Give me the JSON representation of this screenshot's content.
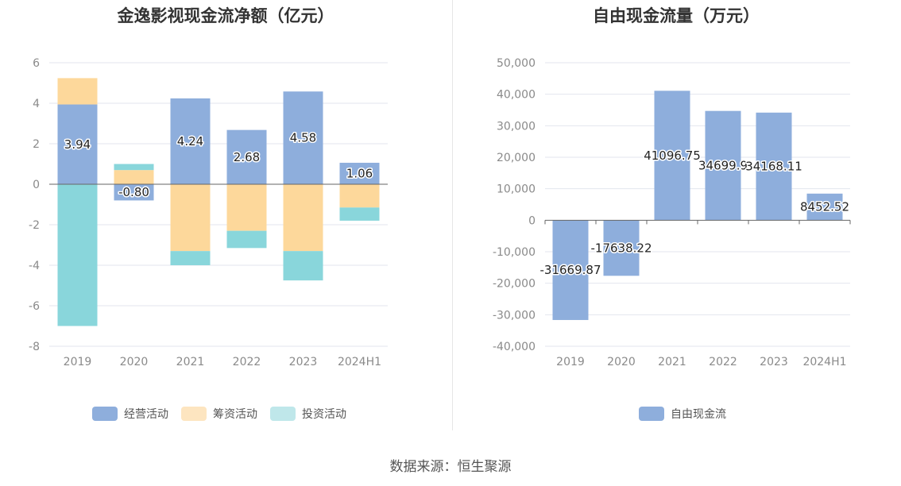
{
  "charts": {
    "left": {
      "title": "金逸影视现金流净额（亿元）",
      "chart_data": {
        "type": "bar",
        "stacked": true,
        "categories": [
          "2019",
          "2020",
          "2021",
          "2022",
          "2023",
          "2024H1"
        ],
        "series": [
          {
            "name": "经营活动",
            "color": "#8eaedc",
            "values": [
              3.94,
              -0.8,
              4.24,
              2.68,
              4.58,
              1.06
            ],
            "labels": [
              "3.94",
              "-0.80",
              "4.24",
              "2.68",
              "4.58",
              "1.06"
            ]
          },
          {
            "name": "筹资活动",
            "color": "#fdd89b",
            "values": [
              1.3,
              0.7,
              -3.3,
              -2.3,
              -3.3,
              -1.15
            ]
          },
          {
            "name": "投资活动",
            "color": "#89d6db",
            "values": [
              -7.0,
              0.3,
              -0.7,
              -0.85,
              -1.45,
              -0.65
            ]
          }
        ],
        "ylim": [
          -8,
          6
        ],
        "yticks": [
          6,
          4,
          2,
          0,
          -2,
          -4,
          -6,
          -8
        ],
        "ytick_labels": [
          "6",
          "4",
          "2",
          "0",
          "-2",
          "-4",
          "-6",
          "-8"
        ],
        "grid": true,
        "legend_position": "bottom",
        "legend_colors": [
          "#8eaedc",
          "#fde5c0",
          "#bfe7ea"
        ]
      }
    },
    "right": {
      "title": "自由现金流量（万元）",
      "chart_data": {
        "type": "bar",
        "categories": [
          "2019",
          "2020",
          "2021",
          "2022",
          "2023",
          "2024H1"
        ],
        "series": [
          {
            "name": "自由现金流",
            "color": "#8eaedc",
            "values": [
              -31669.87,
              -17638.22,
              41096.75,
              34699.9,
              34168.11,
              8452.52
            ],
            "labels": [
              "-31669.87",
              "-17638.22",
              "41096.75",
              "34699.9",
              "34168.11",
              "8452.52"
            ]
          }
        ],
        "ylim": [
          -40000,
          50000
        ],
        "yticks": [
          50000,
          40000,
          30000,
          20000,
          10000,
          0,
          -10000,
          -20000,
          -30000,
          -40000
        ],
        "ytick_labels": [
          "50,000",
          "40,000",
          "30,000",
          "20,000",
          "10,000",
          "0",
          "-10,000",
          "-20,000",
          "-30,000",
          "-40,000"
        ],
        "grid": true,
        "legend_position": "bottom",
        "legend_colors": [
          "#8eaedc"
        ]
      }
    }
  },
  "footer": "数据来源：恒生聚源"
}
